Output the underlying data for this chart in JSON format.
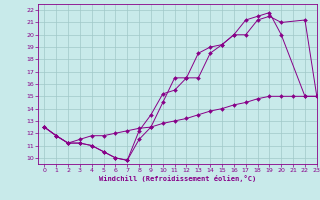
{
  "xlabel": "Windchill (Refroidissement éolien,°C)",
  "xlim": [
    -0.5,
    23
  ],
  "ylim": [
    9.5,
    22.5
  ],
  "xticks": [
    0,
    1,
    2,
    3,
    4,
    5,
    6,
    7,
    8,
    9,
    10,
    11,
    12,
    13,
    14,
    15,
    16,
    17,
    18,
    19,
    20,
    21,
    22,
    23
  ],
  "yticks": [
    10,
    11,
    12,
    13,
    14,
    15,
    16,
    17,
    18,
    19,
    20,
    21,
    22
  ],
  "bg_color": "#c8eaea",
  "grid_color": "#a0c8c8",
  "line_color": "#880088",
  "line1_x": [
    0,
    1,
    2,
    3,
    4,
    5,
    6,
    7,
    8,
    9,
    10,
    11,
    12,
    13,
    14,
    15,
    16,
    17,
    18,
    19,
    20,
    22,
    23
  ],
  "line1_y": [
    12.5,
    11.8,
    11.2,
    11.2,
    11.0,
    10.5,
    10.0,
    9.8,
    11.5,
    12.5,
    14.5,
    16.5,
    16.5,
    18.5,
    19.0,
    19.2,
    20.0,
    20.0,
    21.2,
    21.5,
    21.0,
    21.2,
    15.0
  ],
  "line2_x": [
    0,
    1,
    2,
    3,
    4,
    5,
    6,
    7,
    8,
    9,
    10,
    11,
    12,
    13,
    14,
    15,
    16,
    17,
    18,
    19,
    20,
    22,
    23
  ],
  "line2_y": [
    12.5,
    11.8,
    11.2,
    11.2,
    11.0,
    10.5,
    10.0,
    9.8,
    12.2,
    13.5,
    15.2,
    15.5,
    16.5,
    16.5,
    18.5,
    19.2,
    20.0,
    21.2,
    21.5,
    21.8,
    20.0,
    15.0,
    15.0
  ],
  "line3_x": [
    0,
    1,
    2,
    3,
    4,
    5,
    6,
    7,
    8,
    9,
    10,
    11,
    12,
    13,
    14,
    15,
    16,
    17,
    18,
    19,
    20,
    21,
    22,
    23
  ],
  "line3_y": [
    12.5,
    11.8,
    11.2,
    11.5,
    11.8,
    11.8,
    12.0,
    12.2,
    12.4,
    12.5,
    12.8,
    13.0,
    13.2,
    13.5,
    13.8,
    14.0,
    14.3,
    14.5,
    14.8,
    15.0,
    15.0,
    15.0,
    15.0,
    15.0
  ]
}
